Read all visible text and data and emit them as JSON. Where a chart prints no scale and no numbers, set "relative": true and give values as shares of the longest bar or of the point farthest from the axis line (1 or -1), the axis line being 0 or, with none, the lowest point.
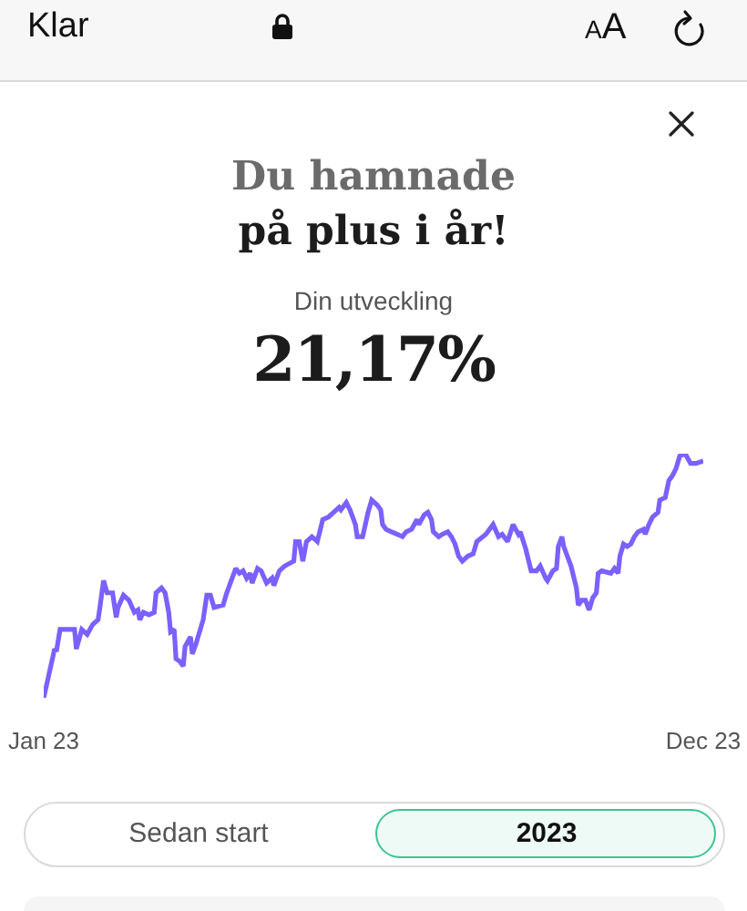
{
  "chart_data": {
    "type": "line",
    "title": "Du hamnade\npå plus i år!",
    "subtitle": "Din utveckling",
    "annotations": [
      "21,17%",
      "Klar",
      "AA",
      "Sedan start",
      "2023"
    ],
    "relative": true,
    "tick_labels": "x",
    "xlim": [
      "2023-01-01",
      "2023-12-31"
    ],
    "xticks": [
      {
        "value": "2023-01-01",
        "label": "Jan 23"
      },
      {
        "value": "2023-12-31",
        "label": "Dec 23"
      }
    ],
    "x": [
      "2023-01-01",
      "2023-01-04",
      "2023-01-07",
      "2023-01-08",
      "2023-01-10",
      "2023-01-14",
      "2023-01-18",
      "2023-01-19",
      "2023-01-22",
      "2023-01-25",
      "2023-01-28",
      "2023-01-31",
      "2023-02-01",
      "2023-02-03",
      "2023-02-05",
      "2023-02-08",
      "2023-02-10",
      "2023-02-11",
      "2023-02-14",
      "2023-02-17",
      "2023-02-20",
      "2023-02-22",
      "2023-02-23",
      "2023-02-25",
      "2023-02-28",
      "2023-03-03",
      "2023-03-04",
      "2023-03-07",
      "2023-03-09",
      "2023-03-11",
      "2023-03-12",
      "2023-03-14",
      "2023-03-15",
      "2023-03-17",
      "2023-03-19",
      "2023-03-20",
      "2023-03-23",
      "2023-03-24",
      "2023-03-26",
      "2023-03-30",
      "2023-04-01",
      "2023-04-03",
      "2023-04-05",
      "2023-04-10",
      "2023-04-12",
      "2023-04-15",
      "2023-04-17",
      "2023-04-19",
      "2023-04-21",
      "2023-04-23",
      "2023-04-25",
      "2023-04-26",
      "2023-04-29",
      "2023-05-01",
      "2023-05-04",
      "2023-05-07",
      "2023-05-08",
      "2023-05-11",
      "2023-05-14",
      "2023-05-19",
      "2023-05-20",
      "2023-05-22",
      "2023-05-24",
      "2023-05-26",
      "2023-05-29",
      "2023-06-01",
      "2023-06-04",
      "2023-06-07",
      "2023-06-10",
      "2023-06-13",
      "2023-06-14",
      "2023-06-17",
      "2023-06-19",
      "2023-06-22",
      "2023-06-23",
      "2023-06-26",
      "2023-06-29",
      "2023-07-01",
      "2023-07-04",
      "2023-07-06",
      "2023-07-07",
      "2023-07-09",
      "2023-07-12",
      "2023-07-15",
      "2023-07-18",
      "2023-07-20",
      "2023-07-23",
      "2023-07-26",
      "2023-07-27",
      "2023-07-30",
      "2023-08-01",
      "2023-08-03",
      "2023-08-04",
      "2023-08-07",
      "2023-08-09",
      "2023-08-12",
      "2023-08-14",
      "2023-08-16",
      "2023-08-18",
      "2023-08-20",
      "2023-08-23",
      "2023-08-26",
      "2023-08-28",
      "2023-09-02",
      "2023-09-06",
      "2023-09-09",
      "2023-09-11",
      "2023-09-14",
      "2023-09-17",
      "2023-09-20",
      "2023-09-21",
      "2023-09-24",
      "2023-09-27",
      "2023-09-30",
      "2023-10-02",
      "2023-10-05",
      "2023-10-06",
      "2023-10-09",
      "2023-10-11",
      "2023-10-12",
      "2023-10-14",
      "2023-10-15",
      "2023-10-17",
      "2023-10-19",
      "2023-10-22",
      "2023-10-23",
      "2023-10-25",
      "2023-10-27",
      "2023-10-29",
      "2023-10-31",
      "2023-11-02",
      "2023-11-03",
      "2023-11-05",
      "2023-11-10",
      "2023-11-12",
      "2023-11-14",
      "2023-11-15",
      "2023-11-17",
      "2023-11-19",
      "2023-11-21",
      "2023-11-23",
      "2023-11-25",
      "2023-11-28",
      "2023-11-29",
      "2023-12-01",
      "2023-12-03",
      "2023-12-06",
      "2023-12-07",
      "2023-12-10",
      "2023-12-12",
      "2023-12-14",
      "2023-12-16",
      "2023-12-18",
      "2023-12-21",
      "2023-12-24",
      "2023-12-27",
      "2023-12-31"
    ],
    "series": [
      {
        "color": "#7b61ff",
        "values": [
          0,
          0.1,
          0.2,
          0.19,
          0.28,
          0.28,
          0.28,
          0.2,
          0.28,
          0.26,
          0.3,
          0.32,
          0.37,
          0.48,
          0.43,
          0.43,
          0.33,
          0.37,
          0.42,
          0.4,
          0.35,
          0.36,
          0.32,
          0.35,
          0.34,
          0.35,
          0.43,
          0.45,
          0.43,
          0.35,
          0.27,
          0.28,
          0.16,
          0.15,
          0.13,
          0.21,
          0.25,
          0.18,
          0.22,
          0.32,
          0.42,
          0.42,
          0.37,
          0.38,
          0.43,
          0.49,
          0.53,
          0.51,
          0.52,
          0.49,
          0.51,
          0.47,
          0.53,
          0.52,
          0.47,
          0.49,
          0.46,
          0.52,
          0.54,
          0.56,
          0.64,
          0.64,
          0.56,
          0.64,
          0.66,
          0.64,
          0.73,
          0.74,
          0.76,
          0.78,
          0.77,
          0.8,
          0.77,
          0.71,
          0.66,
          0.66,
          0.76,
          0.81,
          0.79,
          0.77,
          0.71,
          0.69,
          0.68,
          0.67,
          0.66,
          0.68,
          0.69,
          0.73,
          0.71,
          0.75,
          0.76,
          0.73,
          0.68,
          0.66,
          0.67,
          0.68,
          0.66,
          0.63,
          0.58,
          0.56,
          0.58,
          0.59,
          0.64,
          0.67,
          0.71,
          0.66,
          0.67,
          0.64,
          0.71,
          0.67,
          0.68,
          0.61,
          0.52,
          0.52,
          0.54,
          0.49,
          0.48,
          0.52,
          0.53,
          0.62,
          0.66,
          0.62,
          0.58,
          0.54,
          0.45,
          0.38,
          0.4,
          0.4,
          0.36,
          0.41,
          0.43,
          0.51,
          0.52,
          0.51,
          0.53,
          0.51,
          0.58,
          0.63,
          0.62,
          0.63,
          0.66,
          0.68,
          0.69,
          0.67,
          0.71,
          0.74,
          0.76,
          0.81,
          0.82,
          0.89,
          0.91,
          0.94,
          0.99,
          1,
          0.96,
          0.96,
          0.97
        ]
      }
    ]
  }
}
